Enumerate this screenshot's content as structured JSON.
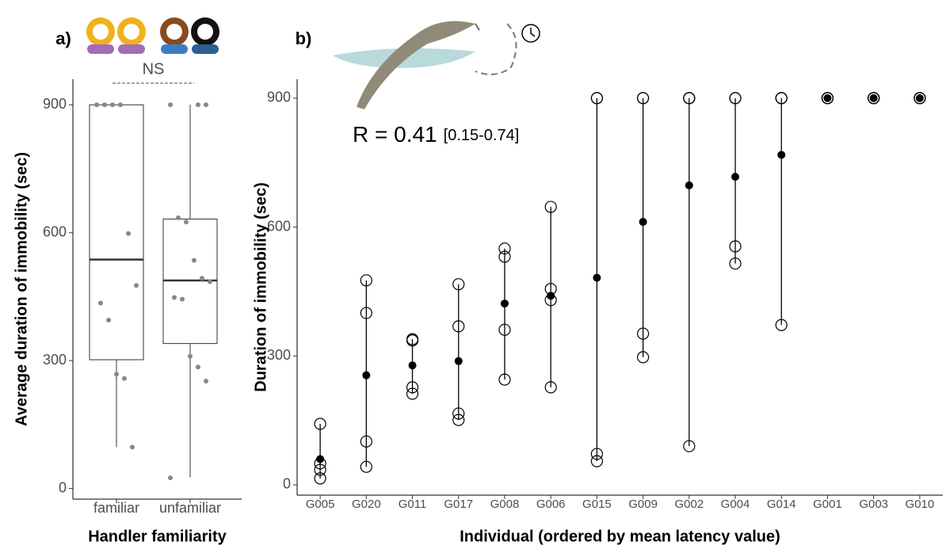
{
  "chart_data": [
    {
      "type": "box",
      "panel_label": "a)",
      "y_label": "Average duration of immobility (sec)",
      "x_label": "Handler familiarity",
      "annotation": "NS",
      "categories": [
        "familiar",
        "unfamiliar"
      ],
      "ylim": [
        -25,
        960
      ],
      "yticks": [
        0,
        300,
        600,
        900
      ],
      "boxes": [
        {
          "whisker_low": 97,
          "q1": 302,
          "median": 537,
          "q3": 900,
          "whisker_high": 900,
          "points": [
            900,
            900,
            900,
            900,
            598,
            476,
            435,
            395,
            268,
            258,
            97
          ]
        },
        {
          "whisker_low": 26,
          "q1": 340,
          "median": 488,
          "q3": 632,
          "whisker_high": 900,
          "points": [
            900,
            900,
            900,
            635,
            625,
            535,
            493,
            485,
            448,
            444,
            310,
            285,
            252,
            25
          ]
        }
      ]
    },
    {
      "type": "dot-range",
      "panel_label": "b)",
      "y_label": "Duration of immobility (sec)",
      "x_label": "Individual (ordered by mean latency value)",
      "annotation": "R = 0.41",
      "annotation_ci": "[0.15-0.74]",
      "categories": [
        "G005",
        "G020",
        "G011",
        "G017",
        "G008",
        "G006",
        "G015",
        "G009",
        "G002",
        "G004",
        "G014",
        "G001",
        "G003",
        "G010"
      ],
      "ylim": [
        -24,
        944
      ],
      "yticks": [
        0,
        300,
        600,
        900
      ],
      "means": [
        60,
        255,
        278,
        288,
        422,
        440,
        482,
        612,
        697,
        717,
        768,
        900,
        900,
        900
      ],
      "observations": [
        [
          142,
          50,
          35,
          15
        ],
        [
          476,
          400,
          101,
          42
        ],
        [
          339,
          336,
          227,
          212
        ],
        [
          467,
          369,
          166,
          151
        ],
        [
          550,
          531,
          361,
          245
        ],
        [
          647,
          456,
          430,
          227
        ],
        [
          900,
          900,
          72,
          55
        ],
        [
          900,
          900,
          352,
          297
        ],
        [
          900,
          900,
          900,
          90
        ],
        [
          900,
          900,
          555,
          515
        ],
        [
          900,
          900,
          900,
          372
        ],
        [
          900,
          900,
          900,
          900
        ],
        [
          900,
          900,
          900,
          900
        ],
        [
          900,
          900,
          900,
          900
        ]
      ]
    }
  ]
}
